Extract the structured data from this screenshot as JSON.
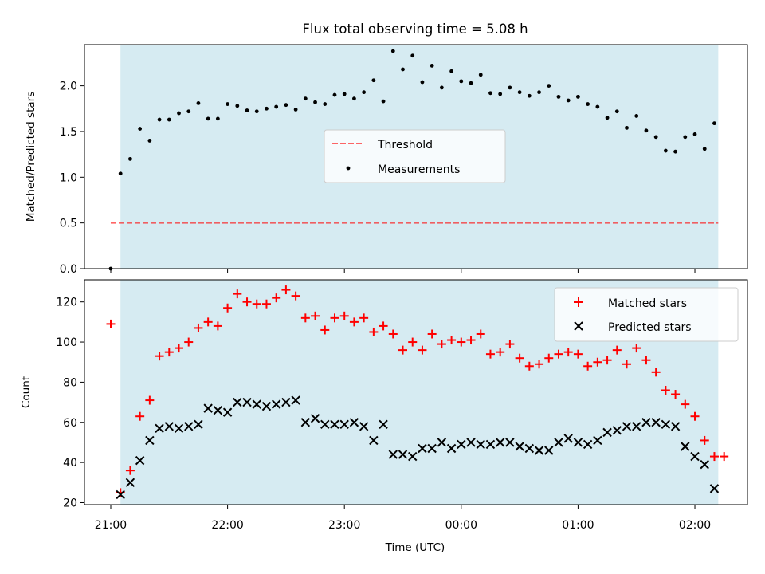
{
  "title": "Flux total observing time = 5.08 h",
  "colors": {
    "shade": "#add8e6",
    "threshold": "#ff0000",
    "measurement": "#000000",
    "matched": "#ff0000",
    "predicted": "#000000"
  },
  "chart_data": [
    {
      "type": "scatter",
      "panel": "top",
      "ylabel": "Matched/Predicted stars",
      "xlabel": "",
      "ylim": [
        0,
        2.45
      ],
      "yticks": [
        "0.0",
        "0.5",
        "1.0",
        "1.5",
        "2.0"
      ],
      "xlim_hours": [
        20.775,
        26.45
      ],
      "shaded_span": [
        "21:05",
        "26:12"
      ],
      "legend_position": "center",
      "threshold": {
        "name": "Threshold",
        "value": 0.5,
        "x_range": [
          "21:00",
          "26:12"
        ]
      },
      "series": [
        {
          "name": "Measurements",
          "x": [
            "21:00",
            "21:05",
            "21:10",
            "21:15",
            "21:20",
            "21:25",
            "21:30",
            "21:35",
            "21:40",
            "21:45",
            "21:50",
            "21:55",
            "22:00",
            "22:05",
            "22:10",
            "22:15",
            "22:20",
            "22:25",
            "22:30",
            "22:35",
            "22:40",
            "22:45",
            "22:50",
            "22:55",
            "23:00",
            "23:05",
            "23:10",
            "23:15",
            "23:20",
            "23:25",
            "23:30",
            "23:35",
            "23:40",
            "23:45",
            "23:50",
            "23:55",
            "24:00",
            "24:05",
            "24:10",
            "24:15",
            "24:20",
            "24:25",
            "24:30",
            "24:35",
            "24:40",
            "24:45",
            "24:50",
            "24:55",
            "25:00",
            "25:05",
            "25:10",
            "25:15",
            "25:20",
            "25:25",
            "25:30",
            "25:35",
            "25:40",
            "25:45",
            "25:50",
            "25:55",
            "26:00",
            "26:05",
            "26:10"
          ],
          "y": [
            0.0,
            1.04,
            1.2,
            1.53,
            1.4,
            1.63,
            1.63,
            1.7,
            1.72,
            1.81,
            1.64,
            1.64,
            1.8,
            1.78,
            1.73,
            1.72,
            1.75,
            1.77,
            1.79,
            1.74,
            1.86,
            1.82,
            1.8,
            1.9,
            1.91,
            1.86,
            1.93,
            2.06,
            1.83,
            2.38,
            2.18,
            2.33,
            2.04,
            2.22,
            1.98,
            2.16,
            2.05,
            2.03,
            2.12,
            1.92,
            1.91,
            1.98,
            1.93,
            1.89,
            1.93,
            2.0,
            1.88,
            1.84,
            1.88,
            1.8,
            1.77,
            1.65,
            1.72,
            1.54,
            1.67,
            1.51,
            1.44,
            1.29,
            1.28,
            1.44,
            1.47,
            1.31,
            1.59
          ]
        }
      ]
    },
    {
      "type": "scatter",
      "panel": "bottom",
      "ylabel": "Count",
      "xlabel": "Time (UTC)",
      "ylim": [
        19,
        131
      ],
      "yticks": [
        "20",
        "40",
        "60",
        "80",
        "100",
        "120"
      ],
      "xticks": [
        "21:00",
        "22:00",
        "23:00",
        "00:00",
        "01:00",
        "02:00"
      ],
      "xlim_hours": [
        20.775,
        26.45
      ],
      "shaded_span": [
        "21:05",
        "26:12"
      ],
      "legend_position": "top-right",
      "series": [
        {
          "name": "Matched stars",
          "marker": "plus",
          "x": [
            "21:00",
            "21:05",
            "21:10",
            "21:15",
            "21:20",
            "21:25",
            "21:30",
            "21:35",
            "21:40",
            "21:45",
            "21:50",
            "21:55",
            "22:00",
            "22:05",
            "22:10",
            "22:15",
            "22:20",
            "22:25",
            "22:30",
            "22:35",
            "22:40",
            "22:45",
            "22:50",
            "22:55",
            "23:00",
            "23:05",
            "23:10",
            "23:15",
            "23:20",
            "23:25",
            "23:30",
            "23:35",
            "23:40",
            "23:45",
            "23:50",
            "23:55",
            "24:00",
            "24:05",
            "24:10",
            "24:15",
            "24:20",
            "24:25",
            "24:30",
            "24:35",
            "24:40",
            "24:45",
            "24:50",
            "24:55",
            "25:00",
            "25:05",
            "25:10",
            "25:15",
            "25:20",
            "25:25",
            "25:30",
            "25:35",
            "25:40",
            "25:45",
            "25:50",
            "25:55",
            "26:00",
            "26:05",
            "26:10",
            "26:15"
          ],
          "y": [
            109,
            25,
            36,
            63,
            71,
            93,
            95,
            97,
            100,
            107,
            110,
            108,
            117,
            124,
            120,
            119,
            119,
            122,
            126,
            123,
            112,
            113,
            106,
            112,
            113,
            110,
            112,
            105,
            108,
            104,
            96,
            100,
            96,
            104,
            99,
            101,
            100,
            101,
            104,
            94,
            95,
            99,
            92,
            88,
            89,
            92,
            94,
            95,
            94,
            88,
            90,
            91,
            96,
            89,
            97,
            91,
            85,
            76,
            74,
            69,
            63,
            51,
            43,
            43
          ]
        },
        {
          "name": "Predicted stars",
          "marker": "cross",
          "x": [
            "21:05",
            "21:10",
            "21:15",
            "21:20",
            "21:25",
            "21:30",
            "21:35",
            "21:40",
            "21:45",
            "21:50",
            "21:55",
            "22:00",
            "22:05",
            "22:10",
            "22:15",
            "22:20",
            "22:25",
            "22:30",
            "22:35",
            "22:40",
            "22:45",
            "22:50",
            "22:55",
            "23:00",
            "23:05",
            "23:10",
            "23:15",
            "23:20",
            "23:25",
            "23:30",
            "23:35",
            "23:40",
            "23:45",
            "23:50",
            "23:55",
            "24:00",
            "24:05",
            "24:10",
            "24:15",
            "24:20",
            "24:25",
            "24:30",
            "24:35",
            "24:40",
            "24:45",
            "24:50",
            "24:55",
            "25:00",
            "25:05",
            "25:10",
            "25:15",
            "25:20",
            "25:25",
            "25:30",
            "25:35",
            "25:40",
            "25:45",
            "25:50",
            "25:55",
            "26:00",
            "26:05",
            "26:10"
          ],
          "y": [
            24,
            30,
            41,
            51,
            57,
            58,
            57,
            58,
            59,
            67,
            66,
            65,
            70,
            70,
            69,
            68,
            69,
            70,
            71,
            60,
            62,
            59,
            59,
            59,
            60,
            58,
            51,
            59,
            44,
            44,
            43,
            47,
            47,
            50,
            47,
            49,
            50,
            49,
            49,
            50,
            50,
            48,
            47,
            46,
            46,
            50,
            52,
            50,
            49,
            51,
            55,
            56,
            58,
            58,
            60,
            60,
            59,
            58,
            48,
            43,
            39,
            27
          ]
        }
      ]
    }
  ]
}
